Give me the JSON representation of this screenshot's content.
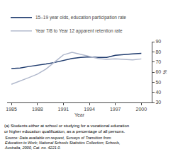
{
  "chart_data": {
    "type": "line",
    "xlabel": "Year",
    "ylabel": "%",
    "x": [
      1985,
      1986,
      1987,
      1988,
      1989,
      1990,
      1991,
      1992,
      1993,
      1994,
      1995,
      1996,
      1997,
      1998,
      1999,
      2000
    ],
    "series": [
      {
        "name": "15–19 year olds, education participation rate",
        "color": "#1f3b6e",
        "values": [
          63.5,
          64.0,
          65.5,
          66.5,
          68.0,
          69.5,
          71.5,
          73.5,
          74.5,
          75.0,
          74.5,
          74.5,
          76.5,
          77.5,
          78.0,
          78.5
        ]
      },
      {
        "name": "Year 7/8 to Year 12 apparent retention rate",
        "color": "#b0b8cc",
        "values": [
          48.0,
          51.0,
          54.5,
          58.0,
          63.0,
          70.0,
          77.0,
          79.5,
          77.5,
          75.5,
          73.5,
          72.5,
          73.0,
          72.5,
          72.0,
          73.0
        ]
      }
    ],
    "xlim": [
      1984.5,
      2001.2
    ],
    "xticks": [
      1985,
      1988,
      1991,
      1994,
      1997,
      2000
    ],
    "ylim": [
      30,
      90
    ],
    "yticks": [
      30,
      40,
      50,
      60,
      70,
      80,
      90
    ],
    "grid": false,
    "legend": "top left",
    "annotations": [
      "(a) Students either at school or studying for a vocational education\nor higher education qualification, as a percentage of all persons.",
      "Source: Data available on request, Surveys of Transition from\nEducation to Work; National Schools Statistics Collection; Schools,\nAustralia, 2000, Cat. no. 4221.0."
    ]
  }
}
